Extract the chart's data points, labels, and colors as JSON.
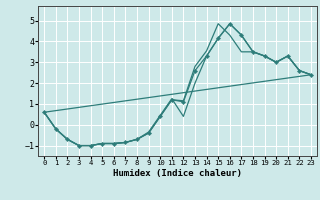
{
  "title": "",
  "xlabel": "Humidex (Indice chaleur)",
  "xlim": [
    -0.5,
    23.5
  ],
  "ylim": [
    -1.5,
    5.7
  ],
  "xticks": [
    0,
    1,
    2,
    3,
    4,
    5,
    6,
    7,
    8,
    9,
    10,
    11,
    12,
    13,
    14,
    15,
    16,
    17,
    18,
    19,
    20,
    21,
    22,
    23
  ],
  "yticks": [
    -1,
    0,
    1,
    2,
    3,
    4,
    5
  ],
  "bg_color": "#cee9e9",
  "grid_color": "#ffffff",
  "line_color": "#2e7d7a",
  "line1_x": [
    0,
    1,
    2,
    3,
    4,
    5,
    6,
    7,
    8,
    9,
    10,
    11,
    12,
    13,
    14,
    15,
    16,
    17,
    18,
    19,
    20,
    21,
    22,
    23
  ],
  "line1_y": [
    0.6,
    -0.2,
    -0.7,
    -1.0,
    -1.0,
    -0.9,
    -0.9,
    -0.85,
    -0.7,
    -0.4,
    0.4,
    1.2,
    1.1,
    2.6,
    3.3,
    4.15,
    4.85,
    4.3,
    3.5,
    3.3,
    3.0,
    3.3,
    2.6,
    2.4
  ],
  "line2_x": [
    0,
    1,
    2,
    3,
    4,
    5,
    6,
    7,
    8,
    9,
    10,
    11,
    12,
    13,
    14,
    15,
    16,
    17,
    18,
    19,
    20,
    21,
    22,
    23
  ],
  "line2_y": [
    0.6,
    -0.2,
    -0.7,
    -1.0,
    -1.0,
    -0.9,
    -0.9,
    -0.85,
    -0.7,
    -0.35,
    0.45,
    1.25,
    0.4,
    2.0,
    3.3,
    4.15,
    4.85,
    4.3,
    3.5,
    3.3,
    3.0,
    3.3,
    2.6,
    2.4
  ],
  "line3_x": [
    0,
    23
  ],
  "line3_y": [
    0.6,
    2.4
  ],
  "line4_x": [
    0,
    1,
    2,
    3,
    4,
    5,
    6,
    7,
    8,
    9,
    10,
    11,
    12,
    13,
    14,
    15,
    16,
    17,
    18,
    19,
    20,
    21,
    22,
    23
  ],
  "line4_y": [
    0.6,
    -0.2,
    -0.7,
    -1.0,
    -1.0,
    -0.9,
    -0.9,
    -0.85,
    -0.7,
    -0.4,
    0.4,
    1.2,
    1.15,
    2.8,
    3.55,
    4.85,
    4.3,
    3.5,
    3.5,
    3.3,
    3.0,
    3.3,
    2.6,
    2.4
  ]
}
